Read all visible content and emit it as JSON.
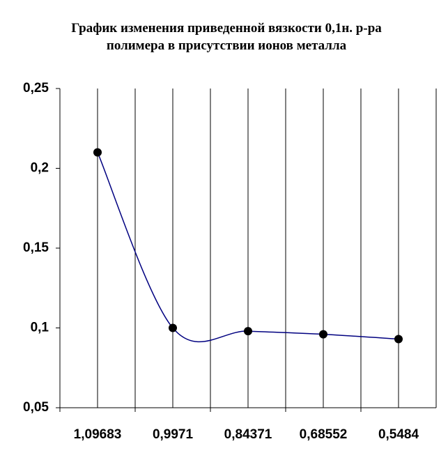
{
  "chart_data": {
    "type": "line",
    "title": [
      "График изменения приведенной вязкости  0,1н. р-ра",
      "полимера в присутствии ионов металла"
    ],
    "categories": [
      "1,09683",
      "0,9971",
      "0,84371",
      "0,68552",
      "0,5484"
    ],
    "values": [
      0.21,
      0.1,
      0.098,
      0.096,
      0.093
    ],
    "color": "#000080",
    "marker_color": "#000000",
    "smooth": true,
    "ylim": [
      0.05,
      0.25
    ],
    "yticks": [
      {
        "value": 0.05,
        "label": "0,05"
      },
      {
        "value": 0.1,
        "label": "0,1"
      },
      {
        "value": 0.15,
        "label": "0,15"
      },
      {
        "value": 0.2,
        "label": "0,2"
      },
      {
        "value": 0.25,
        "label": "0,25"
      }
    ],
    "grid": true
  }
}
